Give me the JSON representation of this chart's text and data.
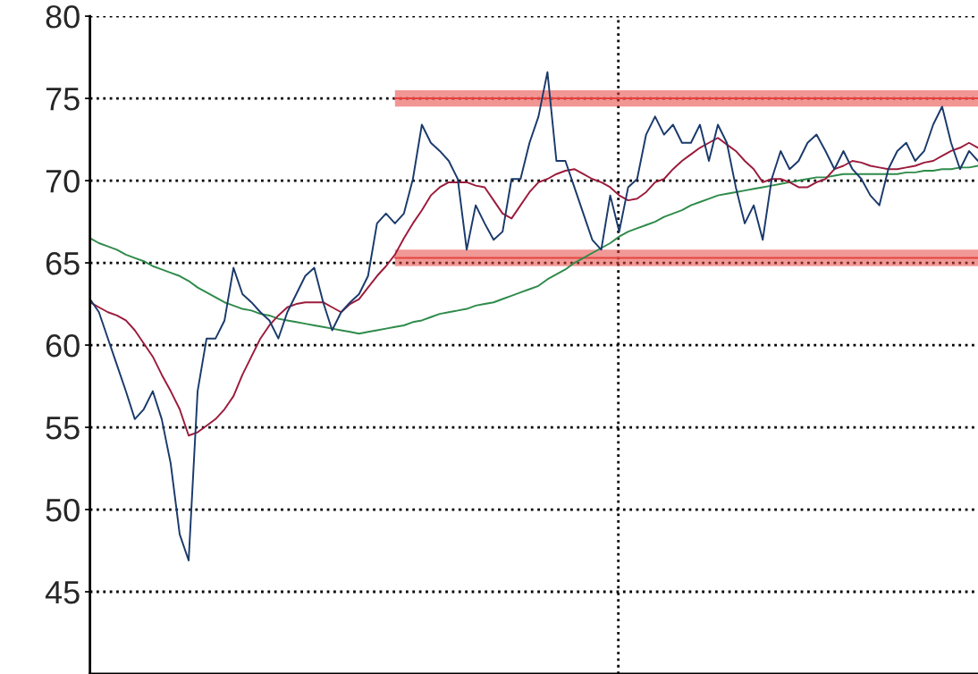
{
  "chart_data": {
    "type": "line",
    "categories": [
      null,
      null,
      null,
      null,
      null,
      null,
      null,
      null,
      null,
      null,
      null,
      null,
      null,
      null,
      null,
      null,
      null,
      null,
      null,
      null,
      null,
      null,
      null,
      null,
      null,
      null,
      null,
      null,
      null,
      null,
      null,
      null,
      null,
      null,
      null,
      null,
      null,
      null,
      null,
      null,
      null,
      null,
      null,
      null,
      null,
      null,
      null,
      null,
      null,
      null,
      null,
      null,
      null,
      null,
      null,
      null,
      null,
      null,
      null,
      null,
      null,
      null,
      null,
      null,
      null,
      null,
      null,
      null,
      null,
      null,
      null,
      null,
      null,
      null,
      null,
      null,
      null,
      null,
      null,
      null,
      null,
      null,
      null,
      null,
      null,
      null,
      null,
      null,
      null,
      null,
      null,
      null,
      null,
      null,
      null,
      null,
      null,
      null,
      null,
      null
    ],
    "ylim": [
      40,
      80
    ],
    "yticks": [
      45,
      50,
      55,
      60,
      65,
      70,
      75,
      80
    ],
    "grid": "y",
    "line_style": "solid",
    "tick_labels": "y",
    "series": [
      {
        "type": "line",
        "color": "#e8403c",
        "values": [
          null,
          null,
          null,
          null,
          null,
          null,
          null,
          null,
          null,
          null,
          null,
          null,
          null,
          null,
          null,
          null,
          null,
          null,
          null,
          null,
          null,
          null,
          null,
          null,
          null,
          null,
          null,
          null,
          null,
          null,
          null,
          null,
          null,
          null,
          75,
          75,
          75,
          75,
          75,
          75,
          75,
          75,
          75,
          75,
          75,
          75,
          75,
          75,
          75,
          75,
          75,
          75,
          75,
          75,
          75,
          75,
          75,
          75,
          75,
          75,
          75,
          75,
          75,
          75,
          75,
          75,
          75,
          75,
          75,
          75,
          75,
          75,
          75,
          75,
          75,
          75,
          75,
          75,
          75,
          75,
          75,
          75,
          75,
          75,
          75,
          75,
          75,
          75,
          75,
          75,
          75,
          75,
          75,
          75,
          75,
          75,
          75,
          75,
          75,
          75
        ],
        "lower": [
          null,
          null,
          null,
          null,
          null,
          null,
          null,
          null,
          null,
          null,
          null,
          null,
          null,
          null,
          null,
          null,
          null,
          null,
          null,
          null,
          null,
          null,
          null,
          null,
          null,
          null,
          null,
          null,
          null,
          null,
          null,
          null,
          null,
          null,
          74.5,
          74.5,
          74.5,
          74.5,
          74.5,
          74.5,
          74.5,
          74.5,
          74.5,
          74.5,
          74.5,
          74.5,
          74.5,
          74.5,
          74.5,
          74.5,
          74.5,
          74.5,
          74.5,
          74.5,
          74.5,
          74.5,
          74.5,
          74.5,
          74.5,
          74.5,
          74.5,
          74.5,
          74.5,
          74.5,
          74.5,
          74.5,
          74.5,
          74.5,
          74.5,
          74.5,
          74.5,
          74.5,
          74.5,
          74.5,
          74.5,
          74.5,
          74.5,
          74.5,
          74.5,
          74.5,
          74.5,
          74.5,
          74.5,
          74.5,
          74.5,
          74.5,
          74.5,
          74.5,
          74.5,
          74.5,
          74.5,
          74.5,
          74.5,
          74.5,
          74.5,
          74.5,
          74.5,
          74.5,
          74.5,
          74.5
        ],
        "upper": [
          null,
          null,
          null,
          null,
          null,
          null,
          null,
          null,
          null,
          null,
          null,
          null,
          null,
          null,
          null,
          null,
          null,
          null,
          null,
          null,
          null,
          null,
          null,
          null,
          null,
          null,
          null,
          null,
          null,
          null,
          null,
          null,
          null,
          null,
          75.5,
          75.5,
          75.5,
          75.5,
          75.5,
          75.5,
          75.5,
          75.5,
          75.5,
          75.5,
          75.5,
          75.5,
          75.5,
          75.5,
          75.5,
          75.5,
          75.5,
          75.5,
          75.5,
          75.5,
          75.5,
          75.5,
          75.5,
          75.5,
          75.5,
          75.5,
          75.5,
          75.5,
          75.5,
          75.5,
          75.5,
          75.5,
          75.5,
          75.5,
          75.5,
          75.5,
          75.5,
          75.5,
          75.5,
          75.5,
          75.5,
          75.5,
          75.5,
          75.5,
          75.5,
          75.5,
          75.5,
          75.5,
          75.5,
          75.5,
          75.5,
          75.5,
          75.5,
          75.5,
          75.5,
          75.5,
          75.5,
          75.5,
          75.5,
          75.5,
          75.5,
          75.5,
          75.5,
          75.5,
          75.5,
          75.5
        ]
      },
      {
        "type": "line",
        "color": "#e6453f",
        "values": [
          null,
          null,
          null,
          null,
          null,
          null,
          null,
          null,
          null,
          null,
          null,
          null,
          null,
          null,
          null,
          null,
          null,
          null,
          null,
          null,
          null,
          null,
          null,
          null,
          null,
          null,
          null,
          null,
          null,
          null,
          null,
          null,
          null,
          null,
          65.3,
          65.3,
          65.3,
          65.3,
          65.3,
          65.3,
          65.3,
          65.3,
          65.3,
          65.3,
          65.3,
          65.3,
          65.3,
          65.3,
          65.3,
          65.3,
          65.3,
          65.3,
          65.3,
          65.3,
          65.3,
          65.3,
          65.3,
          65.3,
          65.3,
          65.3,
          65.3,
          65.3,
          65.3,
          65.3,
          65.3,
          65.3,
          65.3,
          65.3,
          65.3,
          65.3,
          65.3,
          65.3,
          65.3,
          65.3,
          65.3,
          65.3,
          65.3,
          65.3,
          65.3,
          65.3,
          65.3,
          65.3,
          65.3,
          65.3,
          65.3,
          65.3,
          65.3,
          65.3,
          65.3,
          65.3,
          65.3,
          65.3,
          65.3,
          65.3,
          65.3,
          65.3,
          65.3,
          65.3,
          65.3,
          65.3
        ],
        "lower": [
          null,
          null,
          null,
          null,
          null,
          null,
          null,
          null,
          null,
          null,
          null,
          null,
          null,
          null,
          null,
          null,
          null,
          null,
          null,
          null,
          null,
          null,
          null,
          null,
          null,
          null,
          null,
          null,
          null,
          null,
          null,
          null,
          null,
          null,
          64.8,
          64.8,
          64.8,
          64.8,
          64.8,
          64.8,
          64.8,
          64.8,
          64.8,
          64.8,
          64.8,
          64.8,
          64.8,
          64.8,
          64.8,
          64.8,
          64.8,
          64.8,
          64.8,
          64.8,
          64.8,
          64.8,
          64.8,
          64.8,
          64.8,
          64.8,
          64.8,
          64.8,
          64.8,
          64.8,
          64.8,
          64.8,
          64.8,
          64.8,
          64.8,
          64.8,
          64.8,
          64.8,
          64.8,
          64.8,
          64.8,
          64.8,
          64.8,
          64.8,
          64.8,
          64.8,
          64.8,
          64.8,
          64.8,
          64.8,
          64.8,
          64.8,
          64.8,
          64.8,
          64.8,
          64.8,
          64.8,
          64.8,
          64.8,
          64.8,
          64.8,
          64.8,
          64.8,
          64.8,
          64.8,
          64.8
        ],
        "upper": [
          null,
          null,
          null,
          null,
          null,
          null,
          null,
          null,
          null,
          null,
          null,
          null,
          null,
          null,
          null,
          null,
          null,
          null,
          null,
          null,
          null,
          null,
          null,
          null,
          null,
          null,
          null,
          null,
          null,
          null,
          null,
          null,
          null,
          null,
          65.8,
          65.8,
          65.8,
          65.8,
          65.8,
          65.8,
          65.8,
          65.8,
          65.8,
          65.8,
          65.8,
          65.8,
          65.8,
          65.8,
          65.8,
          65.8,
          65.8,
          65.8,
          65.8,
          65.8,
          65.8,
          65.8,
          65.8,
          65.8,
          65.8,
          65.8,
          65.8,
          65.8,
          65.8,
          65.8,
          65.8,
          65.8,
          65.8,
          65.8,
          65.8,
          65.8,
          65.8,
          65.8,
          65.8,
          65.8,
          65.8,
          65.8,
          65.8,
          65.8,
          65.8,
          65.8,
          65.8,
          65.8,
          65.8,
          65.8,
          65.8,
          65.8,
          65.8,
          65.8,
          65.8,
          65.8,
          65.8,
          65.8,
          65.8,
          65.8,
          65.8,
          65.8,
          65.8,
          65.8,
          65.8,
          65.8
        ]
      },
      {
        "color": "#2e8b4a",
        "values": [
          66.5,
          66.2,
          66.0,
          65.8,
          65.5,
          65.3,
          65.1,
          64.8,
          64.6,
          64.4,
          64.2,
          63.9,
          63.5,
          63.2,
          62.9,
          62.6,
          62.4,
          62.2,
          62.1,
          61.9,
          61.8,
          61.6,
          61.5,
          61.4,
          61.3,
          61.2,
          61.1,
          61.0,
          60.9,
          60.8,
          60.7,
          60.8,
          60.9,
          61.0,
          61.1,
          61.2,
          61.4,
          61.5,
          61.7,
          61.9,
          62.0,
          62.1,
          62.2,
          62.4,
          62.5,
          62.6,
          62.8,
          63.0,
          63.2,
          63.4,
          63.6,
          64.0,
          64.3,
          64.6,
          65.0,
          65.3,
          65.6,
          65.9,
          66.2,
          66.6,
          66.9,
          67.1,
          67.3,
          67.5,
          67.8,
          68.0,
          68.2,
          68.5,
          68.7,
          68.9,
          69.1,
          69.2,
          69.3,
          69.4,
          69.5,
          69.6,
          69.7,
          69.8,
          69.9,
          70.0,
          70.1,
          70.2,
          70.2,
          70.3,
          70.4,
          70.4,
          70.4,
          70.4,
          70.4,
          70.4,
          70.4,
          70.5,
          70.5,
          70.6,
          70.6,
          70.7,
          70.7,
          70.8,
          70.8,
          70.9
        ]
      },
      {
        "color": "#9b1b3c",
        "values": [
          62.6,
          62.3,
          62.0,
          61.8,
          61.5,
          60.9,
          60.1,
          59.3,
          58.2,
          57.2,
          56.1,
          54.5,
          54.7,
          55.1,
          55.5,
          56.1,
          56.9,
          58.2,
          59.3,
          60.4,
          61.2,
          61.8,
          62.3,
          62.5,
          62.6,
          62.6,
          62.6,
          62.3,
          62.0,
          62.5,
          62.8,
          63.5,
          64.2,
          64.8,
          65.5,
          66.5,
          67.4,
          68.2,
          69.1,
          69.6,
          69.9,
          69.9,
          69.9,
          69.7,
          69.6,
          68.8,
          68.0,
          67.7,
          68.5,
          69.3,
          69.9,
          70.1,
          70.4,
          70.6,
          70.7,
          70.4,
          70.1,
          69.9,
          69.6,
          69.1,
          68.8,
          68.9,
          69.3,
          69.9,
          70.1,
          70.7,
          71.2,
          71.6,
          72.0,
          72.3,
          72.6,
          72.2,
          71.8,
          71.2,
          70.7,
          69.9,
          70.1,
          70.1,
          69.9,
          69.6,
          69.6,
          69.9,
          70.1,
          70.7,
          70.9,
          71.2,
          71.1,
          70.9,
          70.8,
          70.7,
          70.7,
          70.8,
          70.9,
          71.1,
          71.2,
          71.5,
          71.8,
          72.0,
          72.3,
          72.0
        ]
      },
      {
        "color": "#1a3a6b",
        "values": [
          62.8,
          62.0,
          60.4,
          58.8,
          57.2,
          55.5,
          56.1,
          57.2,
          55.5,
          52.8,
          48.5,
          46.9,
          57.2,
          60.4,
          60.4,
          61.5,
          64.7,
          63.1,
          62.6,
          62.0,
          61.5,
          60.4,
          62.0,
          63.1,
          64.2,
          64.7,
          62.6,
          60.9,
          62.0,
          62.6,
          63.1,
          64.2,
          67.4,
          68.0,
          67.4,
          68.0,
          70.1,
          73.4,
          72.3,
          71.8,
          71.2,
          70.1,
          65.8,
          68.5,
          67.4,
          66.4,
          66.9,
          70.1,
          70.1,
          72.3,
          73.9,
          76.6,
          71.2,
          71.2,
          69.6,
          68.0,
          66.4,
          65.8,
          69.1,
          66.9,
          69.6,
          70.1,
          72.8,
          73.9,
          72.8,
          73.4,
          72.3,
          72.3,
          73.4,
          71.2,
          73.4,
          72.3,
          69.6,
          67.4,
          68.5,
          66.4,
          70.1,
          71.8,
          70.7,
          71.2,
          72.3,
          72.8,
          71.8,
          70.7,
          71.8,
          70.7,
          70.1,
          69.1,
          68.5,
          70.7,
          71.8,
          72.3,
          71.2,
          71.8,
          73.4,
          74.5,
          72.3,
          70.7,
          71.8,
          71.2
        ]
      }
    ]
  }
}
